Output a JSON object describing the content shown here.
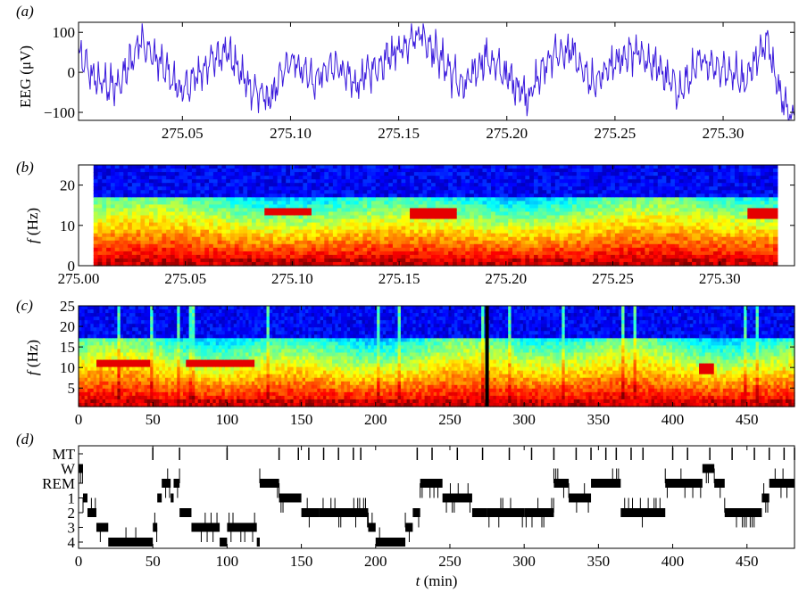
{
  "chart_data": [
    {
      "panel_label": "(a)",
      "type": "line",
      "ylabel": "EEG (μV)",
      "xlim": [
        275.002,
        275.333
      ],
      "ylim": [
        -120,
        125
      ],
      "xticks": [
        "275.05",
        "275.10",
        "275.15",
        "275.20",
        "275.25",
        "275.30"
      ],
      "xtick_values": [
        275.05,
        275.1,
        275.15,
        275.2,
        275.25,
        275.3
      ],
      "yticks": [
        "100",
        "0",
        "−100"
      ],
      "ytick_values": [
        100,
        0,
        -100
      ],
      "line_color": "#3a1adc",
      "series_description_points": [
        [
          275.002,
          40
        ],
        [
          275.01,
          -20
        ],
        [
          275.02,
          -40
        ],
        [
          275.03,
          80
        ],
        [
          275.04,
          20
        ],
        [
          275.05,
          -50
        ],
        [
          275.06,
          10
        ],
        [
          275.07,
          60
        ],
        [
          275.08,
          -30
        ],
        [
          275.09,
          -70
        ],
        [
          275.1,
          30
        ],
        [
          275.11,
          -20
        ],
        [
          275.12,
          20
        ],
        [
          275.13,
          -30
        ],
        [
          275.14,
          10
        ],
        [
          275.15,
          60
        ],
        [
          275.16,
          100
        ],
        [
          275.17,
          30
        ],
        [
          275.18,
          -40
        ],
        [
          275.19,
          40
        ],
        [
          275.2,
          -10
        ],
        [
          275.21,
          -60
        ],
        [
          275.22,
          40
        ],
        [
          275.23,
          50
        ],
        [
          275.24,
          -30
        ],
        [
          275.25,
          20
        ],
        [
          275.26,
          50
        ],
        [
          275.27,
          10
        ],
        [
          275.28,
          -50
        ],
        [
          275.29,
          30
        ],
        [
          275.3,
          10
        ],
        [
          275.31,
          -20
        ],
        [
          275.32,
          80
        ],
        [
          275.33,
          -110
        ]
      ]
    },
    {
      "panel_label": "(b)",
      "type": "heatmap",
      "ylabel": "f (Hz)",
      "xlim": [
        275.0,
        275.335
      ],
      "ylim": [
        0,
        25
      ],
      "xticks": [
        "275.00",
        "275.05",
        "275.10",
        "275.15",
        "275.20",
        "275.25",
        "275.30"
      ],
      "xtick_values": [
        275.0,
        275.05,
        275.1,
        275.15,
        275.2,
        275.25,
        275.3
      ],
      "yticks": [
        "20",
        "10",
        "0"
      ],
      "ytick_values": [
        20,
        10,
        0
      ],
      "data_xrange": [
        275.007,
        275.327
      ],
      "spindle_bands": [
        {
          "x": [
            275.088,
            275.108
          ],
          "f": 13.5
        },
        {
          "x": [
            275.156,
            275.176
          ],
          "f": 13.0
        },
        {
          "x": [
            275.314,
            275.327
          ],
          "f": 13.0
        }
      ]
    },
    {
      "panel_label": "(c)",
      "type": "heatmap",
      "ylabel": "f (Hz)",
      "xlim": [
        0,
        482
      ],
      "ylim": [
        0.5,
        25
      ],
      "xticks": [
        "0",
        "50",
        "100",
        "150",
        "200",
        "250",
        "300",
        "350",
        "400",
        "450"
      ],
      "xtick_values": [
        0,
        50,
        100,
        150,
        200,
        250,
        300,
        350,
        400,
        450
      ],
      "yticks": [
        "25",
        "20",
        "15",
        "10",
        "5"
      ],
      "ytick_values": [
        25,
        20,
        15,
        10,
        5
      ],
      "marker_time": 275,
      "spindle_bands": [
        {
          "x": [
            12,
            48
          ],
          "f": 11
        },
        {
          "x": [
            73,
            118
          ],
          "f": 11
        },
        {
          "x": [
            418,
            428
          ],
          "f": 10
        }
      ]
    },
    {
      "panel_label": "(d)",
      "type": "line",
      "xlabel_var": "t",
      "xlabel_unit": " (min)",
      "xlim": [
        0,
        482
      ],
      "stages": [
        "MT",
        "W",
        "REM",
        "1",
        "2",
        "3",
        "4"
      ],
      "xticks": [
        "0",
        "50",
        "100",
        "150",
        "200",
        "250",
        "300",
        "350",
        "400",
        "450"
      ],
      "xtick_values": [
        0,
        50,
        100,
        150,
        200,
        250,
        300,
        350,
        400,
        450
      ],
      "hypnogram": [
        [
          0,
          1
        ],
        [
          3,
          3
        ],
        [
          6,
          4
        ],
        [
          12,
          5
        ],
        [
          20,
          6
        ],
        [
          50,
          5
        ],
        [
          53,
          3
        ],
        [
          56,
          2
        ],
        [
          62,
          3
        ],
        [
          64,
          2
        ],
        [
          68,
          4
        ],
        [
          76,
          5
        ],
        [
          95,
          6
        ],
        [
          100,
          5
        ],
        [
          120,
          6
        ],
        [
          122,
          2
        ],
        [
          135,
          3
        ],
        [
          150,
          4
        ],
        [
          162,
          4
        ],
        [
          180,
          4
        ],
        [
          195,
          5
        ],
        [
          200,
          6
        ],
        [
          220,
          5
        ],
        [
          225,
          4
        ],
        [
          230,
          2
        ],
        [
          245,
          3
        ],
        [
          265,
          4
        ],
        [
          275,
          4
        ],
        [
          300,
          4
        ],
        [
          320,
          2
        ],
        [
          330,
          3
        ],
        [
          345,
          2
        ],
        [
          365,
          4
        ],
        [
          395,
          2
        ],
        [
          420,
          1
        ],
        [
          428,
          2
        ],
        [
          435,
          4
        ],
        [
          460,
          3
        ],
        [
          465,
          2
        ],
        [
          482,
          2
        ]
      ],
      "movement_times": [
        50,
        68,
        100,
        135,
        148,
        155,
        165,
        175,
        185,
        190,
        228,
        238,
        255,
        272,
        290,
        305,
        320,
        335,
        345,
        355,
        362,
        372,
        380,
        400,
        410,
        425,
        440,
        455,
        465,
        475,
        482
      ]
    }
  ]
}
